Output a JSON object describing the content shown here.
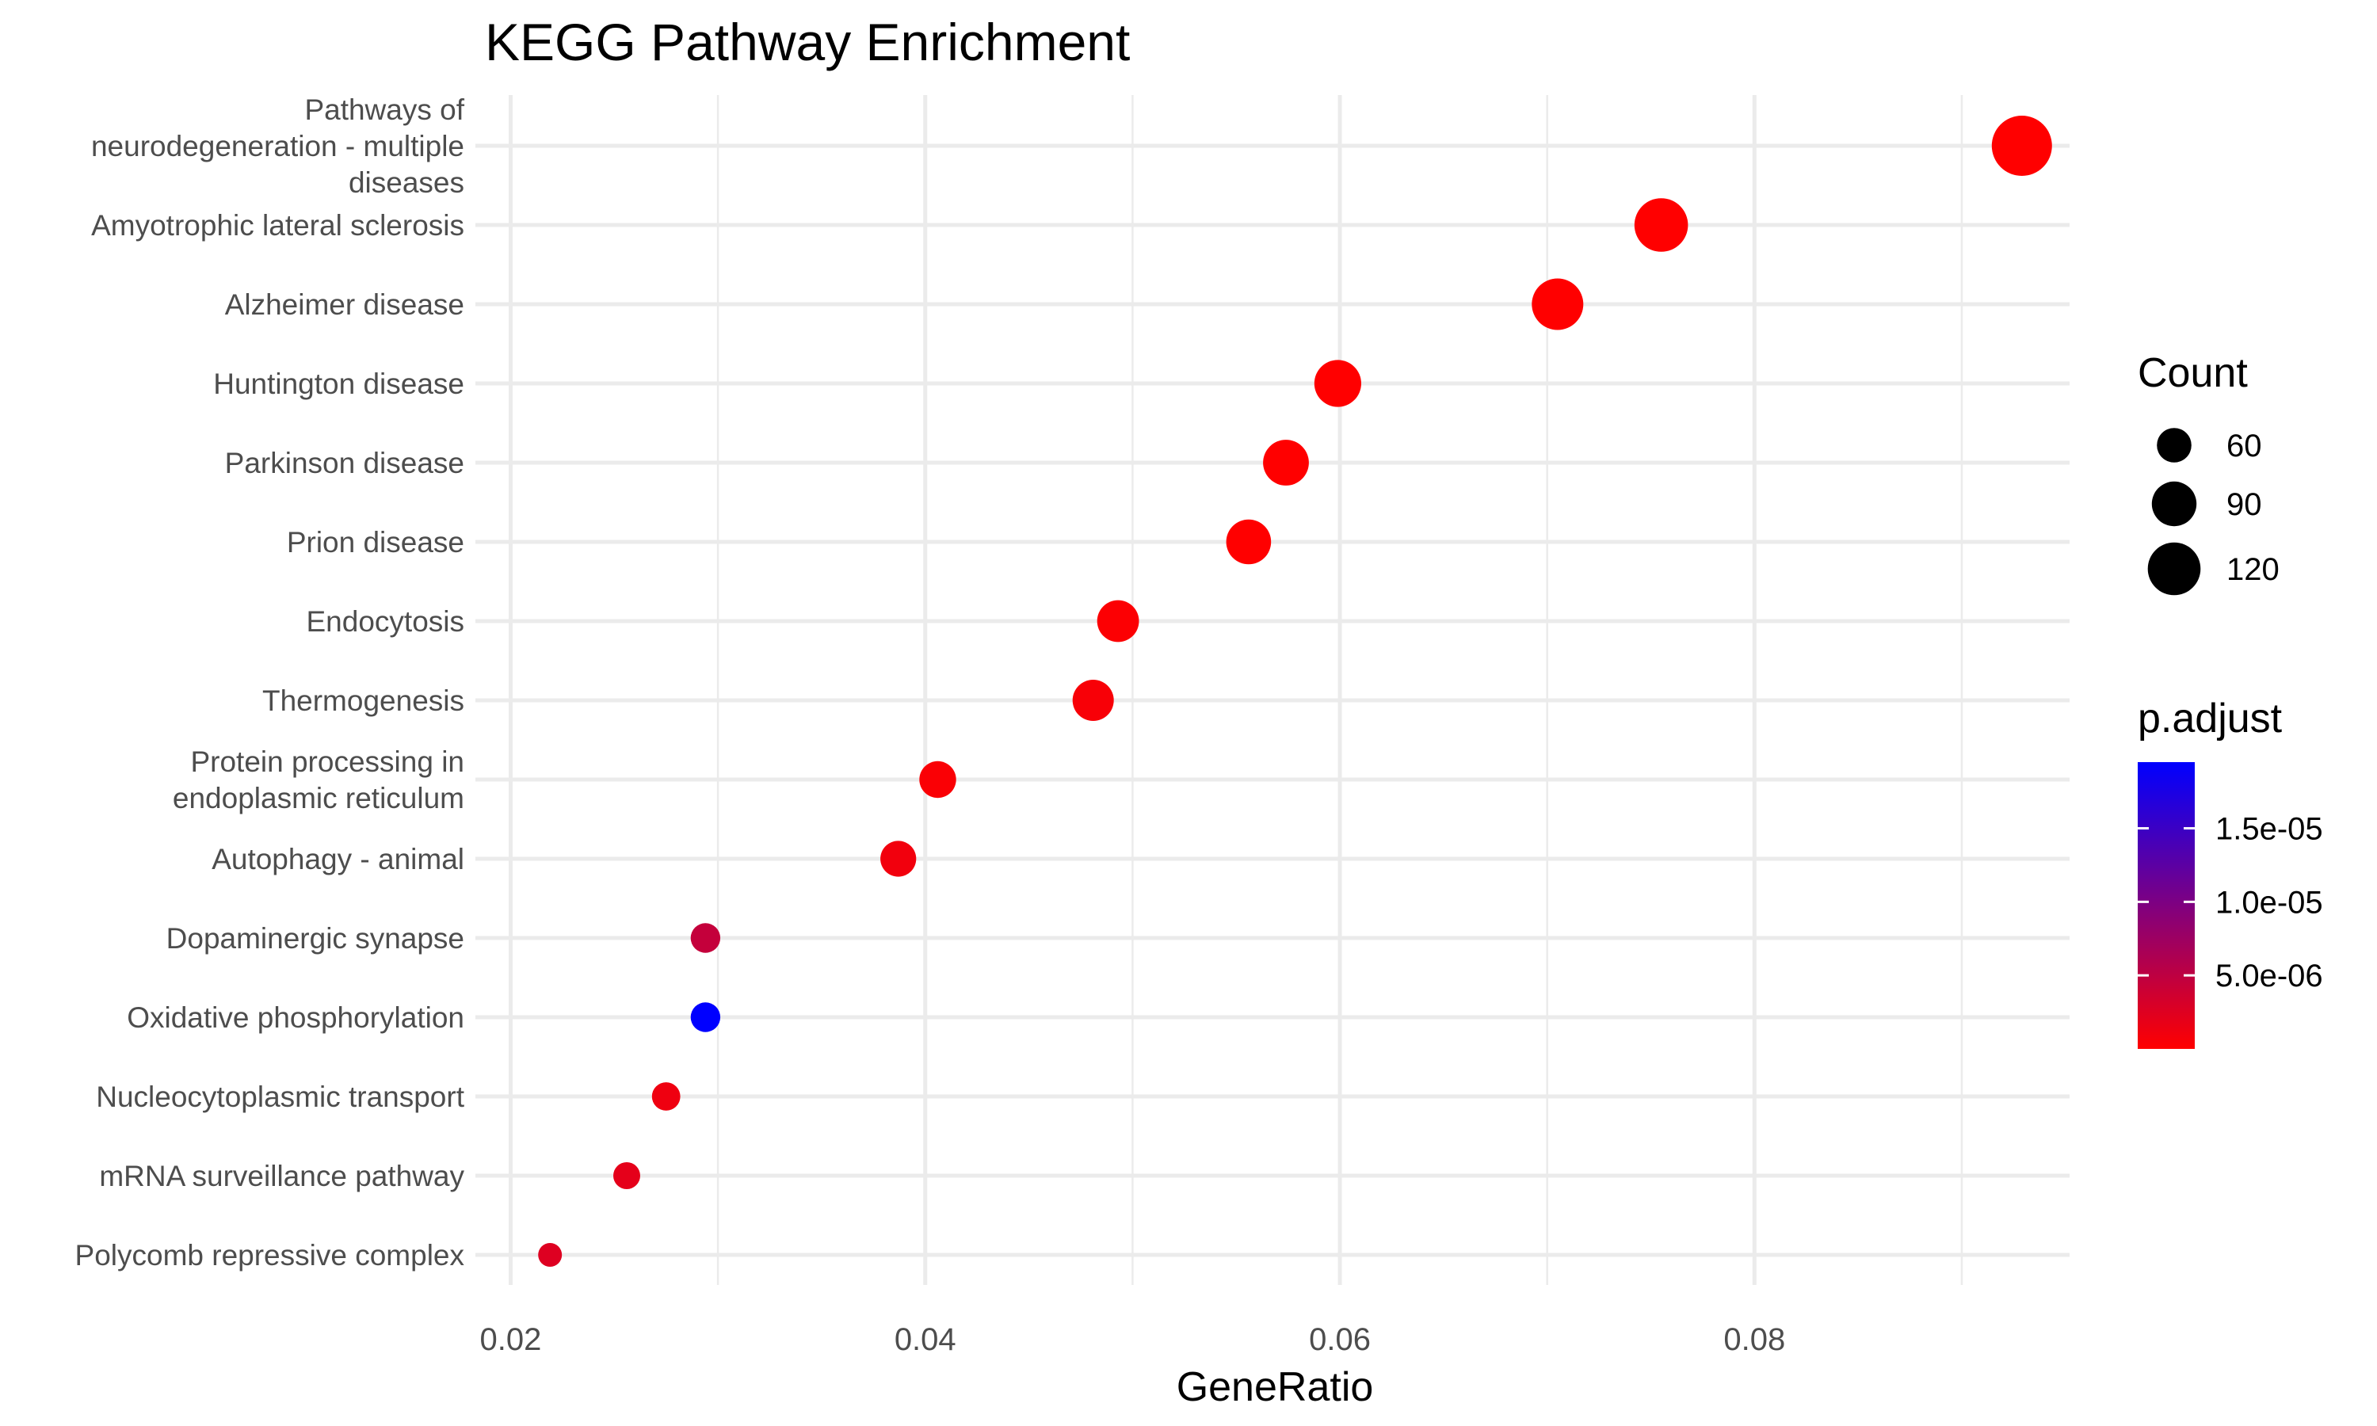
{
  "chart_data": {
    "type": "scatter",
    "title": "KEGG Pathway Enrichment",
    "xlabel": "GeneRatio",
    "ylabel": "",
    "xlim": [
      0.0183,
      0.0952
    ],
    "x_ticks": [
      0.02,
      0.04,
      0.06,
      0.08
    ],
    "x_tick_labels": [
      "0.02",
      "0.04",
      "0.06",
      "0.08"
    ],
    "grid": true,
    "legend_position": "right",
    "points": [
      {
        "pathway": "Pathways of neurodegeneration - multiple diseases",
        "label_lines": [
          "Pathways of",
          "neurodegeneration - multiple",
          "diseases"
        ],
        "gene_ratio": 0.0929,
        "count": 152,
        "p_adjust": 1e-09
      },
      {
        "pathway": "Amyotrophic lateral sclerosis",
        "label_lines": [
          "Amyotrophic lateral sclerosis"
        ],
        "gene_ratio": 0.0755,
        "count": 123,
        "p_adjust": 1e-09
      },
      {
        "pathway": "Alzheimer disease",
        "label_lines": [
          "Alzheimer disease"
        ],
        "gene_ratio": 0.0705,
        "count": 115,
        "p_adjust": 1e-09
      },
      {
        "pathway": "Huntington disease",
        "label_lines": [
          "Huntington disease"
        ],
        "gene_ratio": 0.0599,
        "count": 98,
        "p_adjust": 1e-09
      },
      {
        "pathway": "Parkinson disease",
        "label_lines": [
          "Parkinson disease"
        ],
        "gene_ratio": 0.0574,
        "count": 94,
        "p_adjust": 1e-09
      },
      {
        "pathway": "Prion disease",
        "label_lines": [
          "Prion disease"
        ],
        "gene_ratio": 0.0556,
        "count": 91,
        "p_adjust": 1e-09
      },
      {
        "pathway": "Endocytosis",
        "label_lines": [
          "Endocytosis"
        ],
        "gene_ratio": 0.0493,
        "count": 81,
        "p_adjust": 2e-07
      },
      {
        "pathway": "Thermogenesis",
        "label_lines": [
          "Thermogenesis"
        ],
        "gene_ratio": 0.0481,
        "count": 79,
        "p_adjust": 5e-07
      },
      {
        "pathway": "Protein processing in endoplasmic reticulum",
        "label_lines": [
          "Protein processing in",
          "endoplasmic reticulum"
        ],
        "gene_ratio": 0.0406,
        "count": 66,
        "p_adjust": 4e-07
      },
      {
        "pathway": "Autophagy - animal",
        "label_lines": [
          "Autophagy - animal"
        ],
        "gene_ratio": 0.0387,
        "count": 63,
        "p_adjust": 1e-06
      },
      {
        "pathway": "Dopaminergic synapse",
        "label_lines": [
          "Dopaminergic synapse"
        ],
        "gene_ratio": 0.0294,
        "count": 48,
        "p_adjust": 4.5e-06
      },
      {
        "pathway": "Oxidative phosphorylation",
        "label_lines": [
          "Oxidative phosphorylation"
        ],
        "gene_ratio": 0.0294,
        "count": 48,
        "p_adjust": 1.95e-05
      },
      {
        "pathway": "Nucleocytoplasmic transport",
        "label_lines": [
          "Nucleocytoplasmic transport"
        ],
        "gene_ratio": 0.0275,
        "count": 45,
        "p_adjust": 1.2e-06
      },
      {
        "pathway": "mRNA surveillance pathway",
        "label_lines": [
          "mRNA surveillance pathway"
        ],
        "gene_ratio": 0.0256,
        "count": 42,
        "p_adjust": 2e-06
      },
      {
        "pathway": "Polycomb repressive complex",
        "label_lines": [
          "Polycomb repressive complex"
        ],
        "gene_ratio": 0.0219,
        "count": 36,
        "p_adjust": 2.5e-06
      }
    ],
    "size_legend": {
      "title": "Count",
      "breaks": [
        60,
        90,
        120
      ],
      "labels": [
        "60",
        "90",
        "120"
      ]
    },
    "color_legend": {
      "title": "p.adjust",
      "low_color": "#ff0000",
      "high_color": "#0000ff",
      "range": [
        1e-09,
        1.95e-05
      ],
      "breaks": [
        5e-06,
        1e-05,
        1.5e-05
      ],
      "labels": [
        "5.0e-06",
        "1.0e-05",
        "1.5e-05"
      ]
    },
    "count_range": [
      36,
      152
    ]
  }
}
